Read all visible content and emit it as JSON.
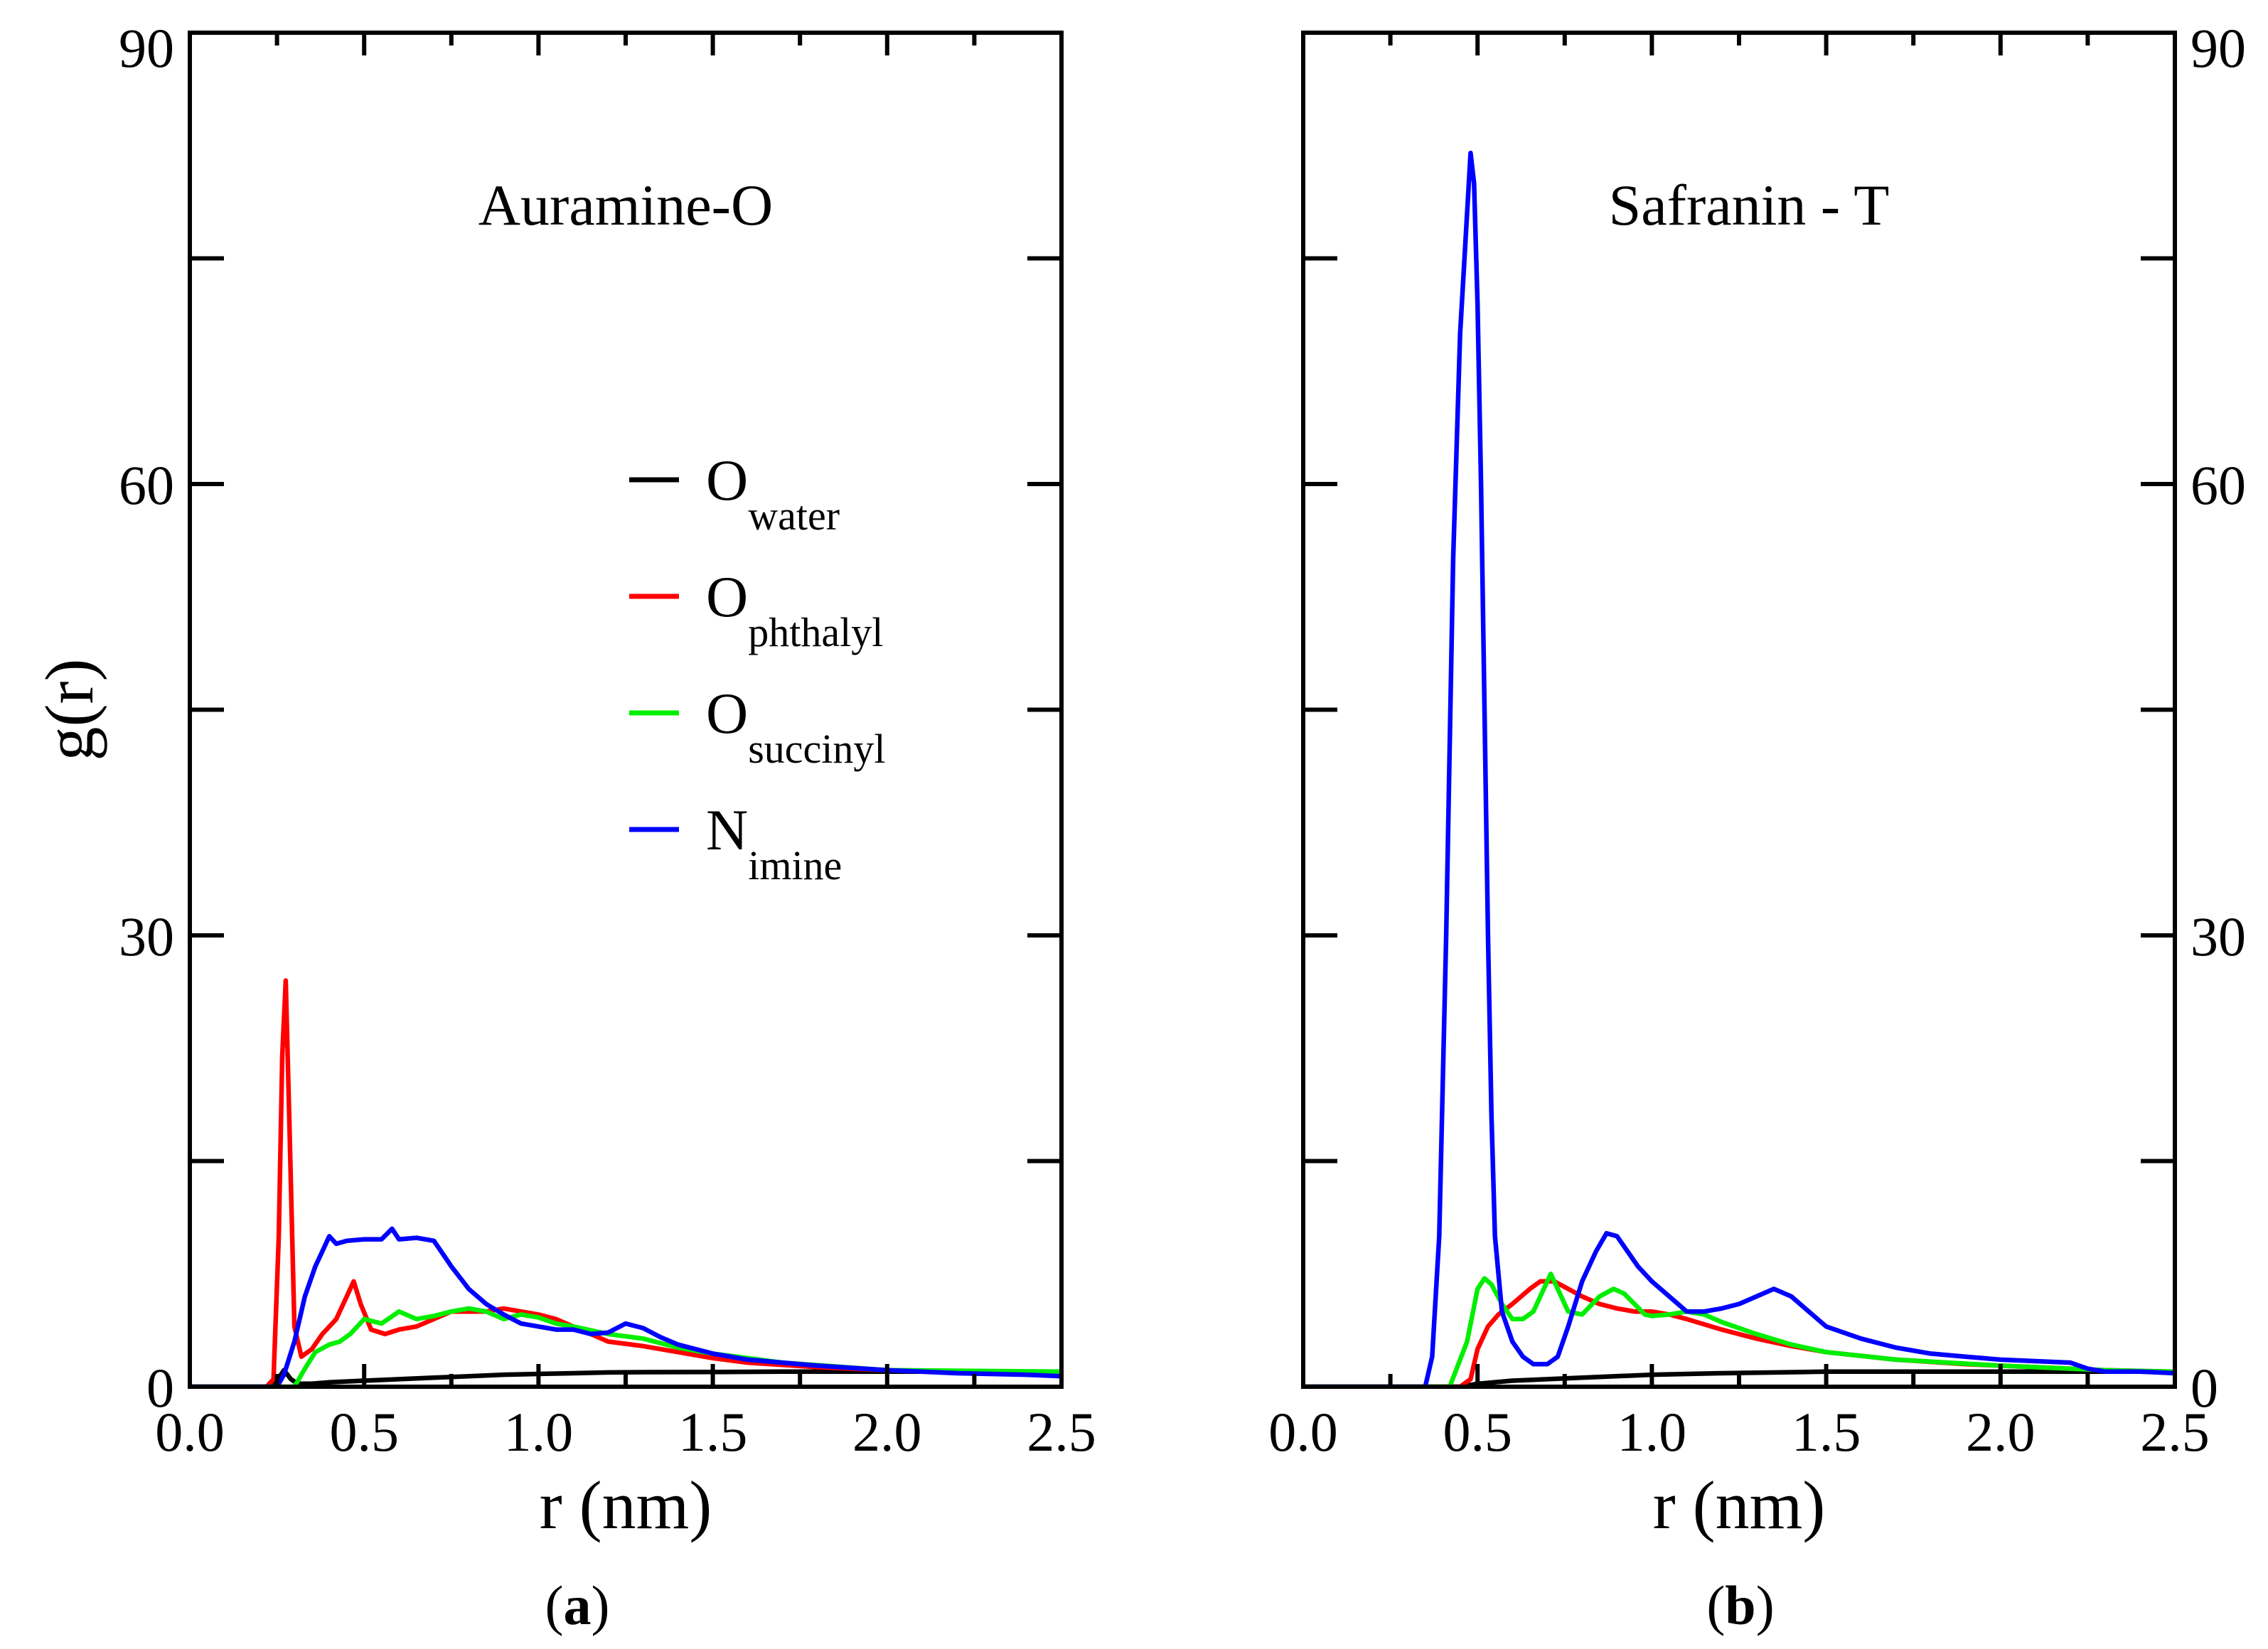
{
  "colors": {
    "water": "#000000",
    "phthalyl": "#ff0000",
    "succinyl": "#00ee00",
    "imine": "#0000ff"
  },
  "chart_data": [
    {
      "type": "line",
      "id": "a",
      "title": "Auramine-O",
      "caption": {
        "open": "(",
        "letter": "a",
        "close": ")"
      },
      "xlabel": "r (nm)",
      "ylabel": "g(r)",
      "xlim": [
        0,
        2.5
      ],
      "ylim": [
        0,
        90
      ],
      "xticks": [
        0,
        0.5,
        1.0,
        1.5,
        2.0,
        2.5
      ],
      "xtick_labels": [
        "0.0",
        "0.5",
        "1.0",
        "1.5",
        "2.0",
        "2.5"
      ],
      "yticks": [
        0,
        15,
        30,
        45,
        60,
        75,
        90
      ],
      "ytick_labels": [
        "0",
        "",
        "30",
        "",
        "60",
        "",
        "90"
      ],
      "ytick_side": "left",
      "legend": {
        "placement": "center",
        "entries": [
          {
            "key": "water",
            "base": "O",
            "sub": "water"
          },
          {
            "key": "phthalyl",
            "base": "O",
            "sub": "phthalyl"
          },
          {
            "key": "succinyl",
            "base": "O",
            "sub": "succinyl"
          },
          {
            "key": "imine",
            "base": "N",
            "sub": "imine"
          }
        ]
      },
      "series": [
        {
          "key": "water",
          "name": "O water",
          "x": [
            0,
            0.22,
            0.25,
            0.27,
            0.29,
            0.31,
            0.35,
            0.4,
            0.5,
            0.6,
            0.7,
            0.8,
            0.9,
            1.0,
            1.1,
            1.2,
            1.3,
            1.5,
            1.7,
            2.0,
            2.5
          ],
          "y": [
            0,
            0,
            0.4,
            1.1,
            0.5,
            0.2,
            0.2,
            0.3,
            0.4,
            0.5,
            0.6,
            0.7,
            0.8,
            0.85,
            0.9,
            0.95,
            0.97,
            0.98,
            1.0,
            1.0,
            1.0
          ]
        },
        {
          "key": "phthalyl",
          "name": "O phthalyl",
          "x": [
            0,
            0.22,
            0.24,
            0.255,
            0.265,
            0.275,
            0.285,
            0.3,
            0.32,
            0.35,
            0.38,
            0.42,
            0.45,
            0.47,
            0.49,
            0.52,
            0.56,
            0.6,
            0.65,
            0.7,
            0.75,
            0.8,
            0.85,
            0.9,
            0.95,
            1.0,
            1.05,
            1.1,
            1.15,
            1.2,
            1.3,
            1.4,
            1.5,
            1.6,
            1.8,
            2.0,
            2.2,
            2.5
          ],
          "y": [
            0,
            0,
            0.5,
            10,
            22,
            27,
            18,
            4,
            2,
            2.5,
            3.5,
            4.5,
            6,
            7,
            5.5,
            3.8,
            3.5,
            3.8,
            4,
            4.5,
            5,
            5,
            5,
            5.2,
            5,
            4.8,
            4.5,
            4,
            3.5,
            3,
            2.7,
            2.3,
            1.9,
            1.6,
            1.3,
            1.1,
            1.0,
            0.9
          ]
        },
        {
          "key": "succinyl",
          "name": "O succinyl",
          "x": [
            0,
            0.3,
            0.33,
            0.36,
            0.4,
            0.43,
            0.46,
            0.5,
            0.55,
            0.6,
            0.65,
            0.7,
            0.75,
            0.8,
            0.85,
            0.9,
            0.95,
            1.0,
            1.05,
            1.1,
            1.2,
            1.3,
            1.4,
            1.5,
            1.7,
            2.0,
            2.5
          ],
          "y": [
            0,
            0,
            1.2,
            2.3,
            2.8,
            3,
            3.5,
            4.5,
            4.2,
            5,
            4.5,
            4.7,
            5,
            5.2,
            5,
            4.5,
            4.8,
            4.6,
            4.2,
            4,
            3.5,
            3.2,
            2.6,
            2.2,
            1.6,
            1.1,
            1.0
          ]
        },
        {
          "key": "imine",
          "name": "N imine",
          "x": [
            0,
            0.25,
            0.27,
            0.3,
            0.33,
            0.36,
            0.38,
            0.4,
            0.42,
            0.45,
            0.5,
            0.55,
            0.58,
            0.6,
            0.65,
            0.7,
            0.75,
            0.8,
            0.85,
            0.9,
            0.95,
            1.0,
            1.05,
            1.1,
            1.15,
            1.2,
            1.25,
            1.3,
            1.35,
            1.4,
            1.5,
            1.6,
            1.8,
            2.0,
            2.2,
            2.4,
            2.5
          ],
          "y": [
            0,
            0,
            0.8,
            3,
            6,
            8,
            9,
            10,
            9.5,
            9.7,
            9.8,
            9.8,
            10.5,
            9.8,
            9.9,
            9.7,
            8,
            6.5,
            5.5,
            4.8,
            4.2,
            4,
            3.8,
            3.8,
            3.5,
            3.6,
            4.2,
            3.9,
            3.3,
            2.8,
            2.2,
            1.8,
            1.4,
            1.1,
            0.9,
            0.8,
            0.7
          ]
        }
      ]
    },
    {
      "type": "line",
      "id": "b",
      "title": "Safranin - T",
      "caption": {
        "open": "(",
        "letter": "b",
        "close": ")"
      },
      "xlabel": "r (nm)",
      "ylabel": "",
      "xlim": [
        0,
        2.5
      ],
      "ylim": [
        0,
        90
      ],
      "xticks": [
        0,
        0.5,
        1.0,
        1.5,
        2.0,
        2.5
      ],
      "xtick_labels": [
        "0.0",
        "0.5",
        "1.0",
        "1.5",
        "2.0",
        "2.5"
      ],
      "yticks": [
        0,
        15,
        30,
        45,
        60,
        75,
        90
      ],
      "ytick_labels": [
        "0",
        "",
        "30",
        "",
        "60",
        "",
        "90"
      ],
      "ytick_side": "right",
      "series": [
        {
          "key": "water",
          "name": "O water",
          "x": [
            0,
            0.45,
            0.5,
            0.6,
            0.8,
            1.0,
            1.2,
            1.5,
            1.8,
            2.1,
            2.5
          ],
          "y": [
            0,
            0,
            0.2,
            0.4,
            0.6,
            0.8,
            0.9,
            1.0,
            1.0,
            1.0,
            1.0
          ]
        },
        {
          "key": "phthalyl",
          "name": "O phthalyl",
          "x": [
            0,
            0.45,
            0.48,
            0.5,
            0.53,
            0.56,
            0.6,
            0.65,
            0.68,
            0.72,
            0.76,
            0.8,
            0.85,
            0.9,
            0.95,
            1.0,
            1.05,
            1.1,
            1.2,
            1.3,
            1.4,
            1.5,
            1.7,
            1.9,
            2.1,
            2.3,
            2.5
          ],
          "y": [
            0,
            0,
            0.5,
            2.5,
            4,
            4.8,
            5.5,
            6.5,
            7,
            7,
            6.5,
            6,
            5.5,
            5.2,
            5,
            5,
            4.8,
            4.5,
            3.8,
            3.2,
            2.7,
            2.3,
            1.8,
            1.5,
            1.3,
            1.1,
            1.0
          ]
        },
        {
          "key": "succinyl",
          "name": "O succinyl",
          "x": [
            0,
            0.42,
            0.47,
            0.5,
            0.52,
            0.54,
            0.57,
            0.6,
            0.63,
            0.66,
            0.69,
            0.71,
            0.73,
            0.76,
            0.8,
            0.85,
            0.89,
            0.92,
            0.95,
            0.98,
            1.0,
            1.05,
            1.1,
            1.15,
            1.2,
            1.3,
            1.4,
            1.5,
            1.7,
            2.0,
            2.3,
            2.5
          ],
          "y": [
            0,
            0,
            3,
            6.5,
            7.2,
            6.8,
            5.5,
            4.5,
            4.5,
            5,
            6.5,
            7.5,
            6.5,
            5,
            4.8,
            6,
            6.5,
            6.2,
            5.5,
            4.8,
            4.7,
            4.8,
            5,
            4.8,
            4.3,
            3.5,
            2.8,
            2.3,
            1.8,
            1.4,
            1.1,
            1.0
          ]
        },
        {
          "key": "imine",
          "name": "N imine",
          "x": [
            0,
            0.35,
            0.37,
            0.39,
            0.41,
            0.43,
            0.45,
            0.47,
            0.48,
            0.49,
            0.5,
            0.51,
            0.52,
            0.53,
            0.54,
            0.55,
            0.57,
            0.6,
            0.63,
            0.66,
            0.7,
            0.73,
            0.76,
            0.8,
            0.84,
            0.87,
            0.9,
            0.93,
            0.96,
            1.0,
            1.05,
            1.1,
            1.15,
            1.2,
            1.25,
            1.3,
            1.35,
            1.4,
            1.45,
            1.5,
            1.6,
            1.7,
            1.8,
            1.9,
            2.0,
            2.1,
            2.2,
            2.25,
            2.3,
            2.4,
            2.5
          ],
          "y": [
            0,
            0,
            2,
            10,
            30,
            55,
            70,
            78,
            82,
            80,
            72,
            60,
            45,
            30,
            18,
            10,
            5,
            3,
            2,
            1.5,
            1.5,
            2,
            4,
            7,
            9,
            10.2,
            10,
            9,
            8,
            7,
            6,
            5,
            5,
            5.2,
            5.5,
            6,
            6.5,
            6,
            5,
            4,
            3.2,
            2.6,
            2.2,
            2,
            1.8,
            1.7,
            1.6,
            1.2,
            1,
            1,
            0.9
          ]
        }
      ]
    }
  ]
}
